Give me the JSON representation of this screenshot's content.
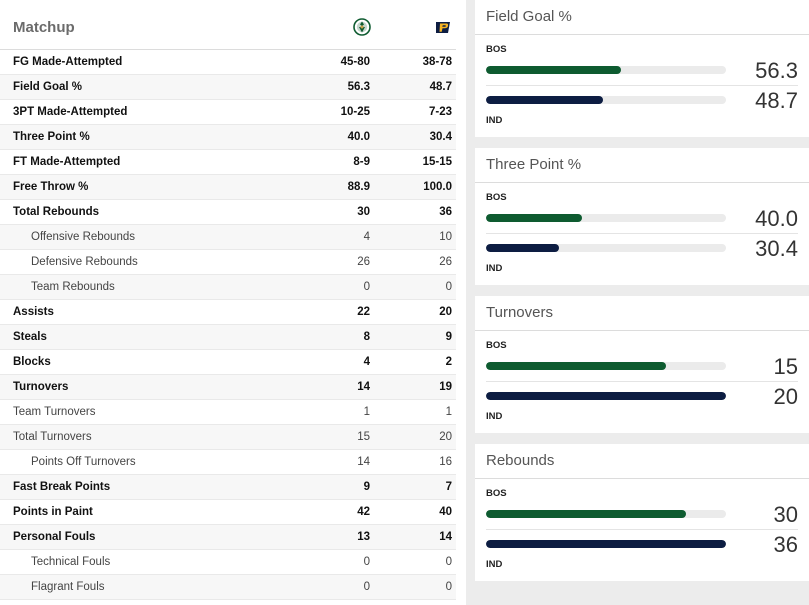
{
  "matchup": {
    "title": "Matchup",
    "teams": [
      {
        "name": "BOS",
        "logo": "celtics-logo",
        "color": "#0e5b30"
      },
      {
        "name": "IND",
        "logo": "pacers-logo",
        "color": "#0d1d42"
      }
    ],
    "rows": [
      {
        "label": "FG Made-Attempted",
        "bos": "45-80",
        "ind": "38-78",
        "style": "bold"
      },
      {
        "label": "Field Goal %",
        "bos": "56.3",
        "ind": "48.7",
        "style": "bold"
      },
      {
        "label": "3PT Made-Attempted",
        "bos": "10-25",
        "ind": "7-23",
        "style": "bold"
      },
      {
        "label": "Three Point %",
        "bos": "40.0",
        "ind": "30.4",
        "style": "bold"
      },
      {
        "label": "FT Made-Attempted",
        "bos": "8-9",
        "ind": "15-15",
        "style": "bold"
      },
      {
        "label": "Free Throw %",
        "bos": "88.9",
        "ind": "100.0",
        "style": "bold"
      },
      {
        "label": "Total Rebounds",
        "bos": "30",
        "ind": "36",
        "style": "bold"
      },
      {
        "label": "Offensive Rebounds",
        "bos": "4",
        "ind": "10",
        "style": "sub"
      },
      {
        "label": "Defensive Rebounds",
        "bos": "26",
        "ind": "26",
        "style": "sub"
      },
      {
        "label": "Team Rebounds",
        "bos": "0",
        "ind": "0",
        "style": "sub"
      },
      {
        "label": "Assists",
        "bos": "22",
        "ind": "20",
        "style": "bold"
      },
      {
        "label": "Steals",
        "bos": "8",
        "ind": "9",
        "style": "bold"
      },
      {
        "label": "Blocks",
        "bos": "4",
        "ind": "2",
        "style": "bold"
      },
      {
        "label": "Turnovers",
        "bos": "14",
        "ind": "19",
        "style": "bold"
      },
      {
        "label": "Team Turnovers",
        "bos": "1",
        "ind": "1",
        "style": "plain"
      },
      {
        "label": "Total Turnovers",
        "bos": "15",
        "ind": "20",
        "style": "plain"
      },
      {
        "label": "Points Off Turnovers",
        "bos": "14",
        "ind": "16",
        "style": "sub"
      },
      {
        "label": "Fast Break Points",
        "bos": "9",
        "ind": "7",
        "style": "bold"
      },
      {
        "label": "Points in Paint",
        "bos": "42",
        "ind": "40",
        "style": "bold"
      },
      {
        "label": "Personal Fouls",
        "bos": "13",
        "ind": "14",
        "style": "bold"
      },
      {
        "label": "Technical Fouls",
        "bos": "0",
        "ind": "0",
        "style": "sub"
      },
      {
        "label": "Flagrant Fouls",
        "bos": "0",
        "ind": "0",
        "style": "sub"
      }
    ]
  },
  "cards": [
    {
      "title": "Field Goal %",
      "top_team": "BOS",
      "bottom_team": "IND",
      "top_value": "56.3",
      "bottom_value": "48.7",
      "top_fill": 0.563,
      "bottom_fill": 0.487
    },
    {
      "title": "Three Point %",
      "top_team": "BOS",
      "bottom_team": "IND",
      "top_value": "40.0",
      "bottom_value": "30.4",
      "top_fill": 0.4,
      "bottom_fill": 0.304
    },
    {
      "title": "Turnovers",
      "top_team": "BOS",
      "bottom_team": "IND",
      "top_value": "15",
      "bottom_value": "20",
      "top_fill": 0.75,
      "bottom_fill": 1.0
    },
    {
      "title": "Rebounds",
      "top_team": "BOS",
      "bottom_team": "IND",
      "top_value": "30",
      "bottom_value": "36",
      "top_fill": 0.833,
      "bottom_fill": 1.0
    }
  ]
}
